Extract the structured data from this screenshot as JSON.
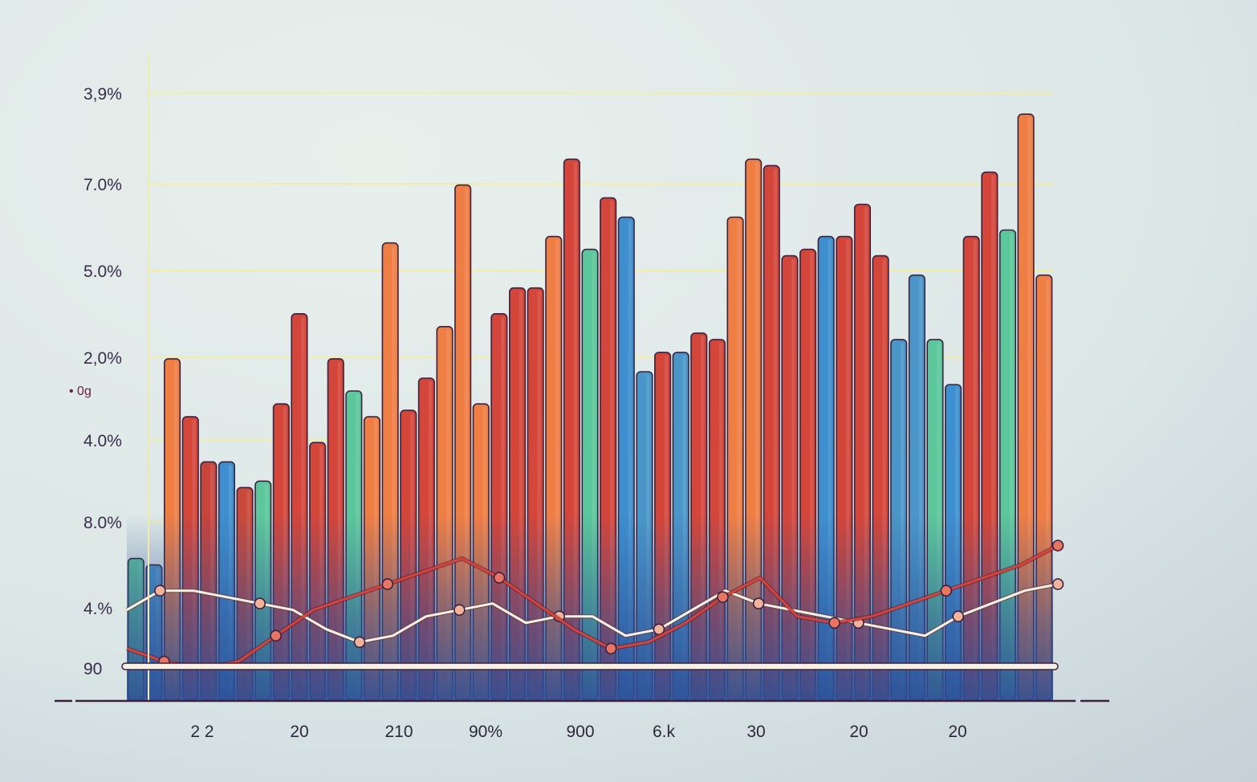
{
  "chart_data": {
    "type": "bar",
    "title": "",
    "xlabel": "",
    "ylabel": "• 0g",
    "grid": true,
    "y_tick_labels": [
      "3,9%",
      "7.0%",
      "5.0%",
      "2,0%",
      "4.0%",
      "8.0%",
      "4.%",
      "90"
    ],
    "x_tick_labels": [
      "2 2",
      "20",
      "210",
      "90%",
      "900",
      "6.k",
      "30",
      "20",
      "20"
    ],
    "bar_values": [
      22,
      21,
      53,
      44,
      37,
      37,
      33,
      34,
      46,
      60,
      40,
      53,
      48,
      44,
      71,
      45,
      50,
      58,
      80,
      46,
      60,
      64,
      64,
      72,
      84,
      70,
      78,
      75,
      51,
      54,
      54,
      57,
      56,
      75,
      84,
      83,
      69,
      70,
      72,
      72,
      77,
      69,
      56,
      66,
      56,
      49,
      72,
      82,
      73,
      91,
      66
    ],
    "bar_colors": [
      "#5cc79a",
      "#4a96c8",
      "#ef7e45",
      "#d4463a",
      "#c9443b",
      "#3e8fcf",
      "#c94a3a",
      "#5cc79a",
      "#d4463a",
      "#d4463a",
      "#d4463a",
      "#d4463a",
      "#5cc79a",
      "#ef7e45",
      "#ef7e45",
      "#d4463a",
      "#d4463a",
      "#ef7e45",
      "#ef7e45",
      "#ef7e45",
      "#d4463a",
      "#d4463a",
      "#d4463a",
      "#ef7e45",
      "#d4463a",
      "#5cc79a",
      "#d4463a",
      "#3e8fcf",
      "#4a96c8",
      "#d4463a",
      "#4a96c8",
      "#d4463a",
      "#d4463a",
      "#ef7e45",
      "#ef7e45",
      "#d4463a",
      "#d4463a",
      "#d4463a",
      "#3e8fcf",
      "#d4463a",
      "#d4463a",
      "#d4463a",
      "#4a96c8",
      "#4a96c8",
      "#5cc79a",
      "#3e8fcf",
      "#d4463a",
      "#d4463a",
      "#5cc79a",
      "#ef7e45",
      "#ef7e45"
    ],
    "series": [
      {
        "values": [
          14,
          17,
          17,
          16,
          15,
          14,
          11,
          9,
          10,
          13,
          14,
          15,
          12,
          13,
          13,
          10,
          11,
          14,
          17,
          15,
          14,
          13,
          12,
          11,
          10,
          13,
          15,
          17,
          18
        ]
      },
      {
        "values": [
          8,
          6,
          5,
          6,
          10,
          14,
          16,
          18,
          20,
          22,
          19,
          15,
          11,
          8,
          9,
          12,
          16,
          19,
          13,
          12,
          13,
          15,
          17,
          19,
          21,
          24
        ]
      }
    ],
    "colors": {
      "background": "#e6eeea",
      "orange": "#ef7e45",
      "red": "#d4463a",
      "teal": "#5cc79a",
      "blue": "#3e8fcf",
      "navy": "#2d4f96",
      "line_light": "#faf3e4",
      "line_red": "#d8423a",
      "gridline": "#f3eea6"
    }
  }
}
